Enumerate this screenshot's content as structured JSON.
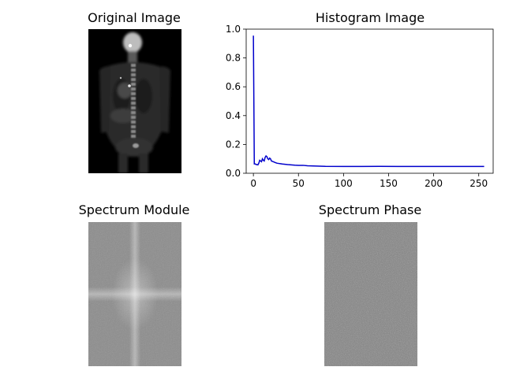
{
  "figure": {
    "subplots": [
      {
        "title": "Original Image"
      },
      {
        "title": "Histogram Image"
      },
      {
        "title": "Spectrum Module"
      },
      {
        "title": "Spectrum Phase"
      }
    ]
  },
  "chart_data": [
    {
      "type": "image",
      "title": "Original Image",
      "description_colormap": "grayscale"
    },
    {
      "type": "line",
      "title": "Histogram Image",
      "xlabel": "",
      "ylabel": "",
      "xlim": [
        -8,
        266
      ],
      "ylim": [
        0,
        1.0
      ],
      "xticks": [
        0,
        50,
        100,
        150,
        200,
        250
      ],
      "yticks": [
        0.0,
        0.2,
        0.4,
        0.6,
        0.8,
        1.0
      ],
      "xtick_labels": [
        "0",
        "50",
        "100",
        "150",
        "200",
        "250"
      ],
      "ytick_labels": [
        "0.0",
        "0.2",
        "0.4",
        "0.6",
        "0.8",
        "1.0"
      ],
      "grid": false,
      "color": "#0000cc",
      "series": [
        {
          "x": [
            0,
            1,
            2,
            3,
            4,
            5,
            6,
            7,
            8,
            9,
            10,
            11,
            12,
            13,
            14,
            15,
            16,
            17,
            18,
            19,
            20,
            22,
            24,
            26,
            28,
            30,
            32,
            35,
            38,
            42,
            46,
            50,
            55,
            60,
            70,
            80,
            100,
            120,
            140,
            160,
            180,
            200,
            220,
            240,
            256
          ],
          "y": [
            0.955,
            0.065,
            0.065,
            0.06,
            0.06,
            0.058,
            0.07,
            0.09,
            0.085,
            0.08,
            0.1,
            0.09,
            0.085,
            0.11,
            0.12,
            0.115,
            0.1,
            0.095,
            0.105,
            0.1,
            0.085,
            0.08,
            0.075,
            0.07,
            0.068,
            0.066,
            0.064,
            0.062,
            0.06,
            0.058,
            0.056,
            0.055,
            0.055,
            0.052,
            0.05,
            0.048,
            0.047,
            0.047,
            0.048,
            0.047,
            0.047,
            0.047,
            0.047,
            0.047,
            0.047
          ]
        }
      ]
    },
    {
      "type": "image",
      "title": "Spectrum Module",
      "description_colormap": "grayscale"
    },
    {
      "type": "image",
      "title": "Spectrum Phase",
      "description_colormap": "grayscale"
    }
  ]
}
